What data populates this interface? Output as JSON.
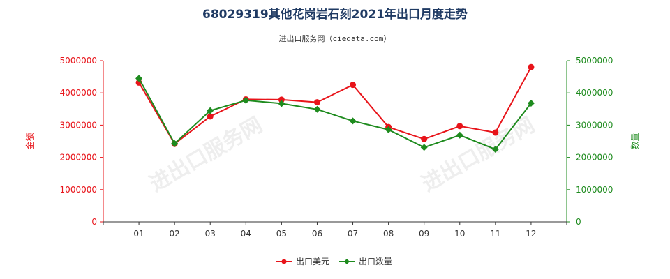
{
  "chart_data": {
    "type": "line",
    "title": "68029319其他花岗岩石刻2021年出口月度走势",
    "subtitle": "进出口服务网（ciedata.com）",
    "categories": [
      "01",
      "02",
      "03",
      "04",
      "05",
      "06",
      "07",
      "08",
      "09",
      "10",
      "11",
      "12"
    ],
    "y_left": {
      "label": "金额",
      "range": [
        0,
        5000000
      ],
      "ticks": [
        "0",
        "1000000",
        "2000000",
        "3000000",
        "4000000",
        "5000000"
      ],
      "color": "#e8141a"
    },
    "y_right": {
      "label": "数量",
      "range": [
        0,
        5000000
      ],
      "ticks": [
        "0",
        "1000000",
        "2000000",
        "3000000",
        "4000000",
        "5000000"
      ],
      "color": "#1e8b1e"
    },
    "series": [
      {
        "name": "出口美元",
        "axis": "left",
        "color": "#e8141a",
        "marker": "circle",
        "values": [
          4320000,
          2420000,
          3270000,
          3800000,
          3790000,
          3710000,
          4250000,
          2940000,
          2570000,
          2970000,
          2770000,
          4800000
        ]
      },
      {
        "name": "出口数量",
        "axis": "right",
        "color": "#1e8b1e",
        "marker": "diamond",
        "values": [
          4450000,
          2430000,
          3450000,
          3770000,
          3670000,
          3490000,
          3130000,
          2860000,
          2310000,
          2690000,
          2250000,
          3680000
        ]
      }
    ],
    "grid": false,
    "legend": "bottom-center"
  },
  "watermark": "进出口服务网"
}
